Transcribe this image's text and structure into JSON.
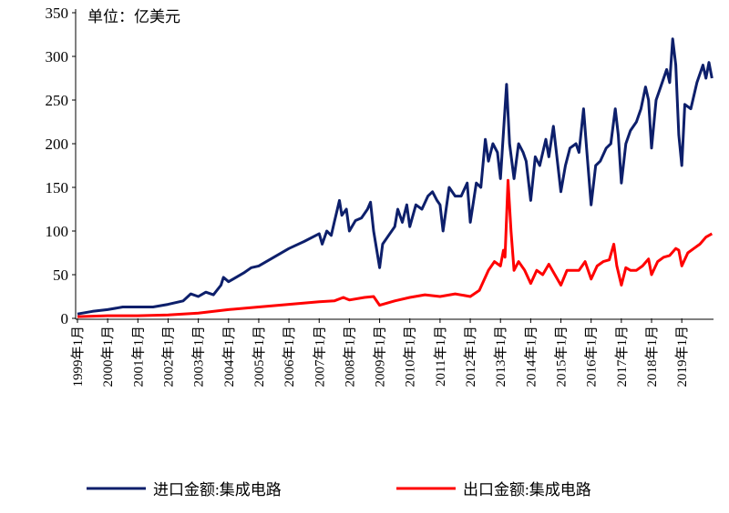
{
  "chart_data": {
    "type": "line",
    "annotation": "单位：亿美元",
    "xlim": [
      1998.94,
      2020.05
    ],
    "ylim": [
      0,
      350
    ],
    "yticks": [
      0,
      50,
      100,
      150,
      200,
      250,
      300,
      350
    ],
    "xticks": [
      {
        "value": 1999,
        "label": "1999年1月"
      },
      {
        "value": 2000,
        "label": "2000年1月"
      },
      {
        "value": 2001,
        "label": "2001年1月"
      },
      {
        "value": 2002,
        "label": "2002年1月"
      },
      {
        "value": 2003,
        "label": "2003年1月"
      },
      {
        "value": 2004,
        "label": "2004年1月"
      },
      {
        "value": 2005,
        "label": "2005年1月"
      },
      {
        "value": 2006,
        "label": "2006年1月"
      },
      {
        "value": 2007,
        "label": "2007年1月"
      },
      {
        "value": 2008,
        "label": "2008年1月"
      },
      {
        "value": 2009,
        "label": "2009年1月"
      },
      {
        "value": 2010,
        "label": "2010年1月"
      },
      {
        "value": 2011,
        "label": "2011年1月"
      },
      {
        "value": 2012,
        "label": "2012年1月"
      },
      {
        "value": 2013,
        "label": "2013年1月"
      },
      {
        "value": 2014,
        "label": "2014年1月"
      },
      {
        "value": 2015,
        "label": "2015年1月"
      },
      {
        "value": 2016,
        "label": "2016年1月"
      },
      {
        "value": 2017,
        "label": "2017年1月"
      },
      {
        "value": 2018,
        "label": "2018年1月"
      },
      {
        "value": 2019,
        "label": "2019年1月"
      }
    ],
    "grid": false,
    "legend": "bottom",
    "series": [
      {
        "name": "进口金额:集成电路",
        "color": "#0d1f6b",
        "x": [
          1999.0,
          1999.5,
          2000.0,
          2000.5,
          2001.0,
          2001.5,
          2002.0,
          2002.5,
          2002.75,
          2003.0,
          2003.25,
          2003.5,
          2003.75,
          2003.83,
          2004.0,
          2004.5,
          2004.75,
          2005.0,
          2005.5,
          2006.0,
          2006.5,
          2007.0,
          2007.1,
          2007.25,
          2007.4,
          2007.5,
          2007.67,
          2007.75,
          2007.9,
          2008.0,
          2008.2,
          2008.4,
          2008.6,
          2008.7,
          2008.8,
          2009.0,
          2009.1,
          2009.3,
          2009.5,
          2009.6,
          2009.75,
          2009.9,
          2010.0,
          2010.2,
          2010.4,
          2010.6,
          2010.75,
          2010.9,
          2011.0,
          2011.1,
          2011.3,
          2011.5,
          2011.7,
          2011.9,
          2012.0,
          2012.2,
          2012.35,
          2012.5,
          2012.6,
          2012.75,
          2012.9,
          2013.0,
          2013.2,
          2013.3,
          2013.45,
          2013.6,
          2013.75,
          2013.85,
          2014.0,
          2014.15,
          2014.3,
          2014.5,
          2014.6,
          2014.75,
          2014.85,
          2015.0,
          2015.15,
          2015.3,
          2015.5,
          2015.6,
          2015.75,
          2015.85,
          2016.0,
          2016.15,
          2016.3,
          2016.5,
          2016.65,
          2016.8,
          2016.9,
          2017.0,
          2017.15,
          2017.3,
          2017.5,
          2017.65,
          2017.8,
          2017.9,
          2018.0,
          2018.15,
          2018.3,
          2018.5,
          2018.6,
          2018.7,
          2018.8,
          2018.9,
          2019.0,
          2019.1,
          2019.3,
          2019.5,
          2019.7,
          2019.8,
          2019.9,
          2020.0
        ],
        "values": [
          5,
          8,
          10,
          13,
          13,
          13,
          16,
          20,
          28,
          25,
          30,
          27,
          38,
          47,
          42,
          52,
          58,
          60,
          70,
          80,
          88,
          97,
          85,
          100,
          95,
          110,
          135,
          118,
          125,
          100,
          112,
          115,
          125,
          133,
          100,
          58,
          85,
          95,
          105,
          125,
          110,
          130,
          105,
          130,
          125,
          140,
          145,
          135,
          130,
          100,
          150,
          140,
          140,
          155,
          110,
          155,
          150,
          205,
          180,
          200,
          190,
          160,
          268,
          200,
          160,
          200,
          190,
          180,
          135,
          185,
          175,
          205,
          185,
          220,
          190,
          145,
          175,
          195,
          200,
          190,
          240,
          195,
          130,
          175,
          180,
          195,
          200,
          240,
          210,
          155,
          200,
          215,
          225,
          240,
          265,
          250,
          195,
          250,
          265,
          285,
          270,
          320,
          290,
          210,
          175,
          245,
          240,
          270,
          290,
          275,
          293,
          275
        ]
      },
      {
        "name": "出口金额:集成电路",
        "color": "#ff0000",
        "x": [
          1999.0,
          2000.0,
          2001.0,
          2002.0,
          2003.0,
          2004.0,
          2005.0,
          2006.0,
          2007.0,
          2007.5,
          2007.8,
          2008.0,
          2008.5,
          2008.8,
          2009.0,
          2009.5,
          2010.0,
          2010.5,
          2011.0,
          2011.5,
          2012.0,
          2012.3,
          2012.6,
          2012.8,
          2013.0,
          2013.1,
          2013.15,
          2013.25,
          2013.35,
          2013.45,
          2013.6,
          2013.8,
          2014.0,
          2014.2,
          2014.4,
          2014.6,
          2014.8,
          2015.0,
          2015.2,
          2015.4,
          2015.6,
          2015.8,
          2016.0,
          2016.2,
          2016.4,
          2016.6,
          2016.75,
          2016.85,
          2017.0,
          2017.15,
          2017.3,
          2017.5,
          2017.7,
          2017.9,
          2018.0,
          2018.2,
          2018.4,
          2018.6,
          2018.8,
          2018.9,
          2019.0,
          2019.2,
          2019.4,
          2019.6,
          2019.8,
          2020.0
        ],
        "values": [
          2,
          3,
          3,
          4,
          6,
          10,
          13,
          16,
          19,
          20,
          24,
          21,
          24,
          25,
          15,
          20,
          24,
          27,
          25,
          28,
          25,
          32,
          55,
          65,
          60,
          78,
          70,
          158,
          100,
          55,
          65,
          55,
          40,
          55,
          50,
          62,
          50,
          38,
          55,
          55,
          55,
          65,
          45,
          60,
          65,
          67,
          85,
          60,
          38,
          58,
          55,
          55,
          60,
          68,
          50,
          65,
          70,
          72,
          80,
          78,
          60,
          75,
          80,
          85,
          93,
          97
        ]
      }
    ]
  }
}
